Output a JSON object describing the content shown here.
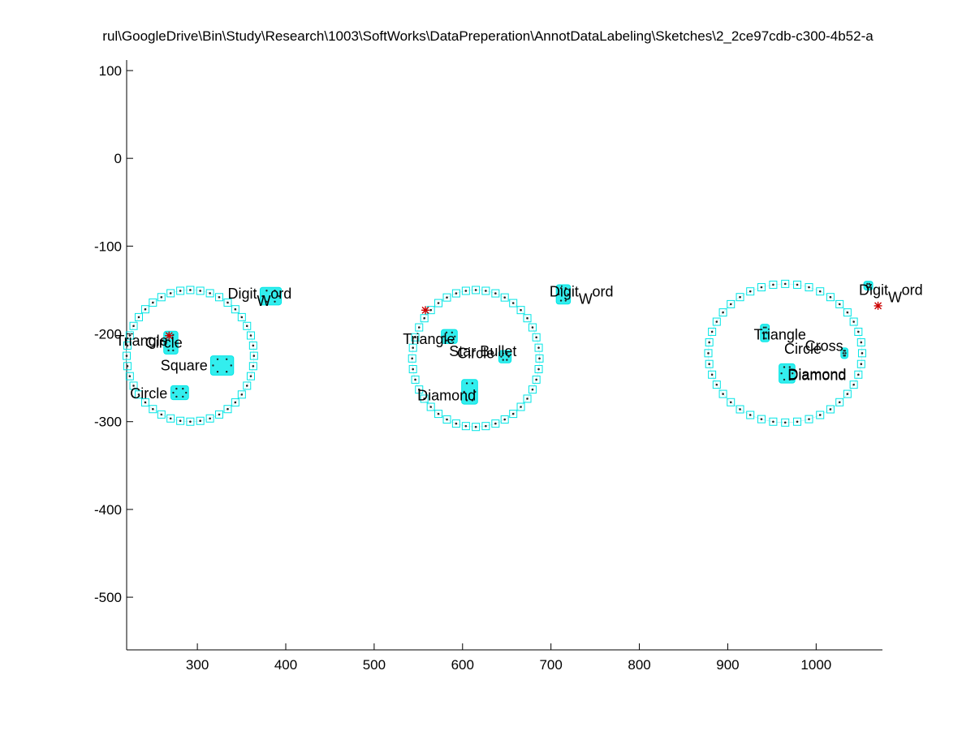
{
  "chart_data": {
    "type": "scatter",
    "title": "rul\\GoogleDrive\\Bin\\Study\\Research\\1003\\SoftWorks\\DataPreperation\\AnnotDataLabeling\\Sketches\\2_2ce97cdb-c300-4b52-a",
    "xlabel": "",
    "ylabel": "",
    "xlim": [
      220,
      1075
    ],
    "ylim": [
      -560,
      112
    ],
    "xticks": [
      300,
      400,
      500,
      600,
      700,
      800,
      900,
      1000
    ],
    "yticks": [
      100,
      0,
      -100,
      -200,
      -300,
      -400,
      -500
    ],
    "grid": false,
    "colors": {
      "marker_box": "#00e5e5",
      "blob": "#33eeee",
      "dot": "#222222",
      "stroke_start": "#cc0000"
    },
    "circle_outlines": [
      {
        "cx": 292,
        "cy": -225,
        "rx": 72,
        "ry": 75
      },
      {
        "cx": 615,
        "cy": -228,
        "rx": 72,
        "ry": 78
      },
      {
        "cx": 965,
        "cy": -222,
        "rx": 87,
        "ry": 79
      }
    ],
    "shape_clusters": [
      {
        "cx": 270,
        "cy": -210,
        "w": 16,
        "h": 26
      },
      {
        "cx": 328,
        "cy": -236,
        "w": 26,
        "h": 22
      },
      {
        "cx": 280,
        "cy": -267,
        "w": 20,
        "h": 16
      },
      {
        "cx": 383,
        "cy": -157,
        "w": 24,
        "h": 20
      },
      {
        "cx": 585,
        "cy": -203,
        "w": 18,
        "h": 16
      },
      {
        "cx": 648,
        "cy": -226,
        "w": 14,
        "h": 14
      },
      {
        "cx": 608,
        "cy": -266,
        "w": 18,
        "h": 28
      },
      {
        "cx": 714,
        "cy": -155,
        "w": 16,
        "h": 22
      },
      {
        "cx": 942,
        "cy": -199,
        "w": 10,
        "h": 20
      },
      {
        "cx": 967,
        "cy": -245,
        "w": 18,
        "h": 22
      },
      {
        "cx": 1032,
        "cy": -222,
        "w": 8,
        "h": 12
      },
      {
        "cx": 1059,
        "cy": -145,
        "w": 10,
        "h": 10
      }
    ],
    "stroke_starts": [
      {
        "x": 268,
        "y": -202
      },
      {
        "x": 558,
        "y": -173
      },
      {
        "x": 1070,
        "y": -168
      }
    ],
    "annotations": [
      {
        "x": 376,
        "y": -154,
        "text": "Digit",
        "sub": "W",
        "tail": "ord"
      },
      {
        "x": 237,
        "y": -208,
        "text": "Triangle"
      },
      {
        "x": 262,
        "y": -210,
        "text": "Circle"
      },
      {
        "x": 285,
        "y": -236,
        "text": "Square"
      },
      {
        "x": 245,
        "y": -268,
        "text": "Circle"
      },
      {
        "x": 740,
        "y": -152,
        "text": "Digit",
        "sub": "W",
        "tail": "ord"
      },
      {
        "x": 562,
        "y": -206,
        "text": "Triangle"
      },
      {
        "x": 615,
        "y": -222,
        "text": "Circle"
      },
      {
        "x": 623,
        "y": -220,
        "text": "Star Bullet"
      },
      {
        "x": 582,
        "y": -270,
        "text": "Diamond"
      },
      {
        "x": 1090,
        "y": -150,
        "text": "Digit",
        "sub": "W",
        "tail": "ord"
      },
      {
        "x": 959,
        "y": -201,
        "text": "Triangle"
      },
      {
        "x": 985,
        "y": -217,
        "text": "Circle"
      },
      {
        "x": 1009,
        "y": -214,
        "text": "Cross"
      },
      {
        "x": 1001,
        "y": -246,
        "text": "Diamond"
      },
      {
        "x": 1001,
        "y": -247,
        "text": "Diamond"
      }
    ]
  }
}
